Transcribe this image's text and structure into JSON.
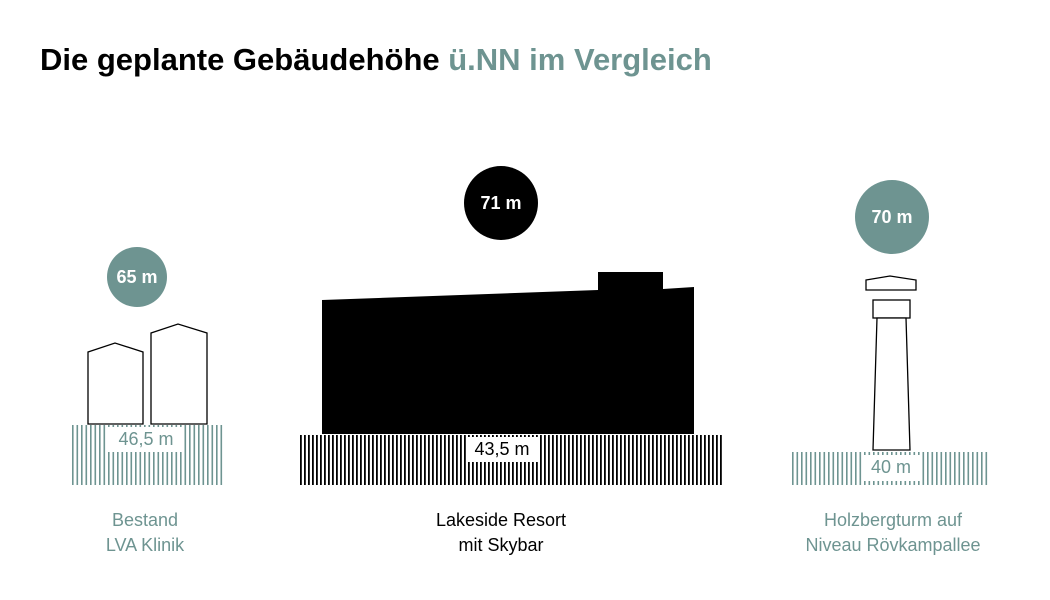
{
  "title": {
    "main": "Die geplante Gebäudehöhe",
    "highlight": "ü.NN im Vergleich"
  },
  "buildings": [
    {
      "height": "65 m",
      "ground": "46,5 m",
      "name": [
        "Bestand",
        "LVA Klinik"
      ]
    },
    {
      "height": "71 m",
      "ground": "43,5 m",
      "name": [
        "Lakeside Resort",
        "mit Skybar"
      ]
    },
    {
      "height": "70 m",
      "ground": "40 m",
      "name": [
        "Holzbergturm auf",
        "Niveau Rövkampallee"
      ]
    }
  ]
}
